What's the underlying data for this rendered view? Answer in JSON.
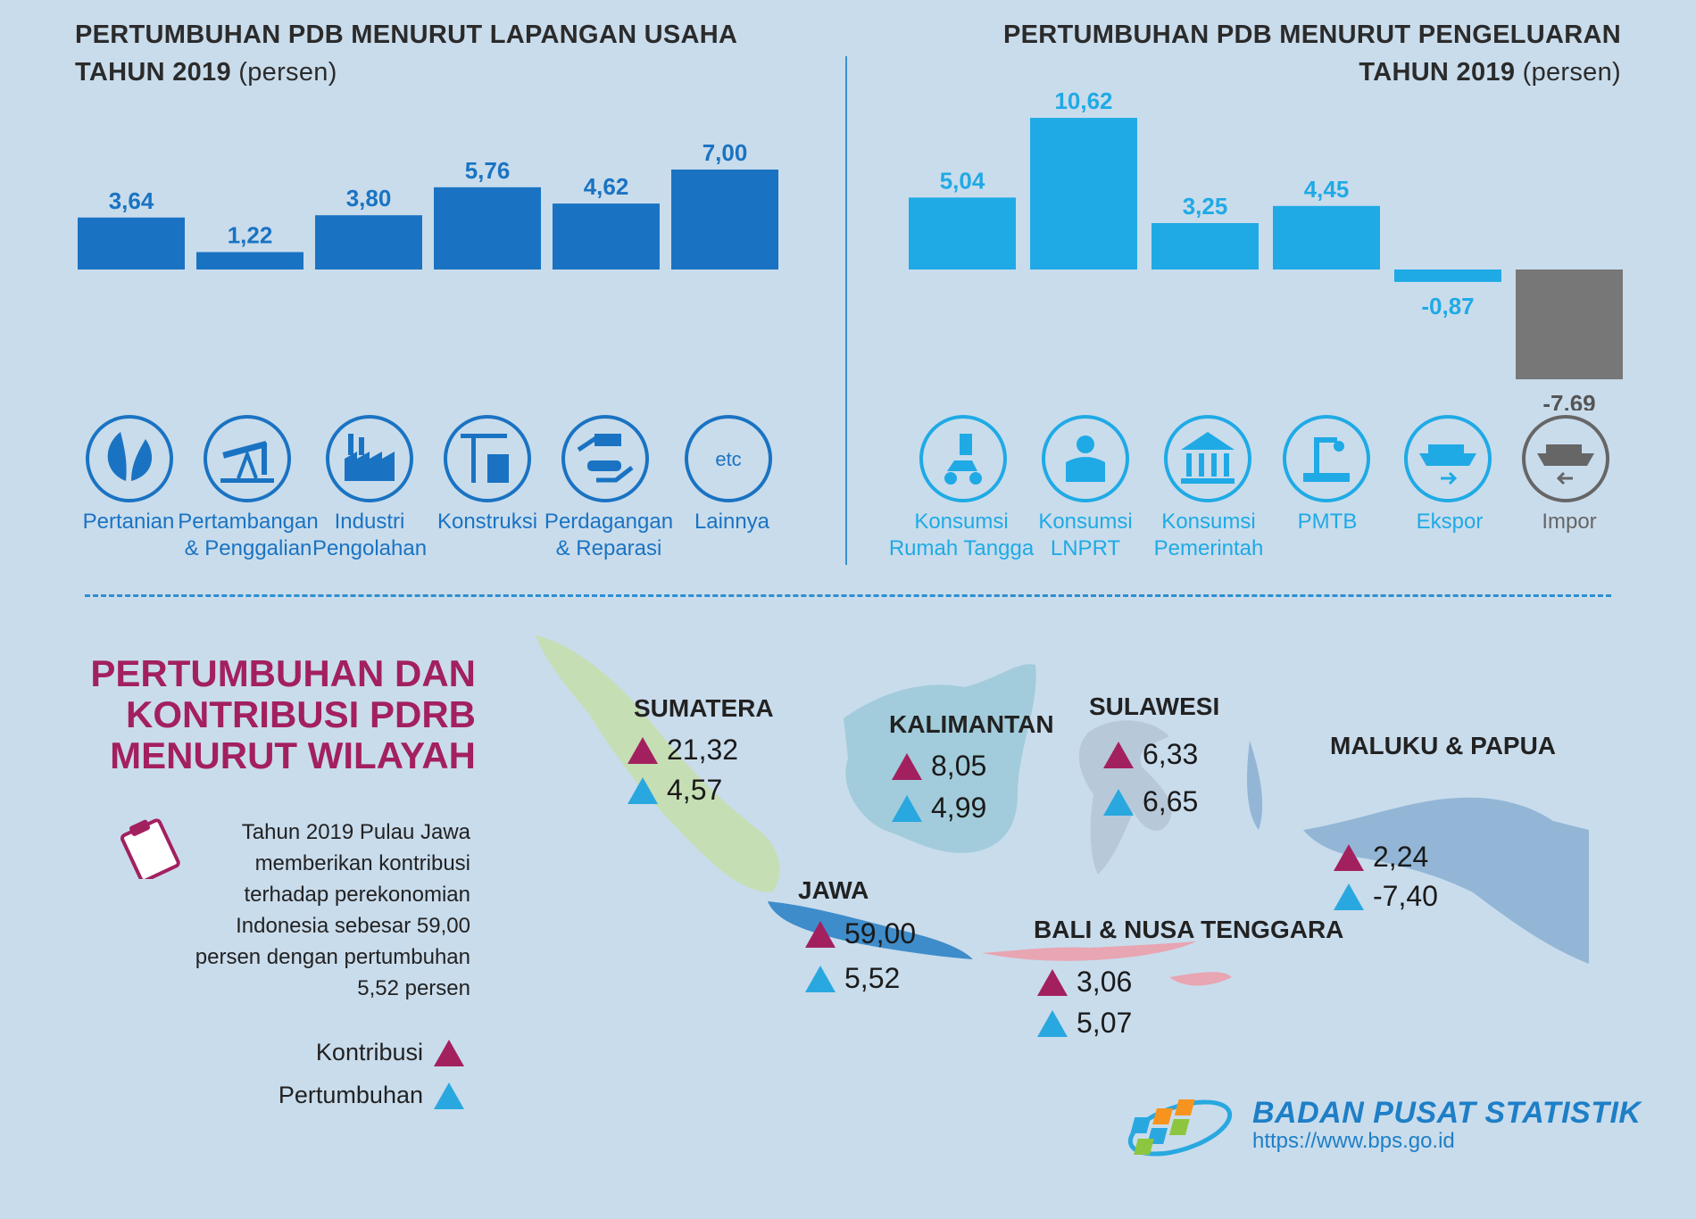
{
  "left_title": {
    "line1": "PERTUMBUHAN PDB MENURUT LAPANGAN USAHA",
    "line2_bold": "TAHUN 2019",
    "line2_unit": " (persen)"
  },
  "right_title": {
    "line1": "PERTUMBUHAN PDB MENURUT PENGELUARAN",
    "line2_bold": "TAHUN 2019",
    "line2_unit": " (persen)"
  },
  "colors": {
    "left_bar": "#1a73c2",
    "right_bar": "#1faae5",
    "impor_bar": "#777777",
    "contribution": "#a3205f",
    "growth": "#29a8e0",
    "title_accent": "#a3205f"
  },
  "chart_data": [
    {
      "type": "bar",
      "title": "PERTUMBUHAN PDB MENURUT LAPANGAN USAHA TAHUN 2019 (persen)",
      "categories": [
        "Pertanian",
        "Pertambangan & Penggalian",
        "Industri Pengolahan",
        "Konstruksi",
        "Perdagangan & Reparasi",
        "Lainnya"
      ],
      "values": [
        3.64,
        1.22,
        3.8,
        5.76,
        4.62,
        7.0
      ],
      "value_labels": [
        "3,64",
        "1,22",
        "3,80",
        "5,76",
        "4,62",
        "7,00"
      ],
      "icons": [
        "leaf-icon",
        "oil-pump-icon",
        "factory-icon",
        "crane-icon",
        "trade-hands-icon",
        "etc-icon"
      ],
      "icon_text_etc": "etc",
      "grid": false
    },
    {
      "type": "bar",
      "title": "PERTUMBUHAN PDB MENURUT PENGELUARAN TAHUN 2019 (persen)",
      "categories": [
        "Konsumsi Rumah Tangga",
        "Konsumsi LNPRT",
        "Konsumsi Pemerintah",
        "PMTB",
        "Ekspor",
        "Impor"
      ],
      "values": [
        5.04,
        10.62,
        3.25,
        4.45,
        -0.87,
        -7.69
      ],
      "value_labels": [
        "5,04",
        "10,62",
        "3,25",
        "4,45",
        "-0,87",
        "-7,69"
      ],
      "icons": [
        "household-icon",
        "person-icon",
        "government-building-icon",
        "machine-icon",
        "export-ship-icon",
        "import-ship-icon"
      ],
      "grid": false
    }
  ],
  "left_labels": [
    "Pertanian",
    "Pertambangan\n& Penggalian",
    "Industri\nPengolahan",
    "Konstruksi",
    "Perdagangan\n& Reparasi",
    "Lainnya"
  ],
  "right_labels": [
    "Konsumsi\nRumah Tangga",
    "Konsumsi\nLNPRT",
    "Konsumsi\nPemerintah",
    "PMTB",
    "Ekspor",
    "Impor"
  ],
  "pdrb": {
    "title": "PERTUMBUHAN DAN\nKONTRIBUSI PDRB\nMENURUT WILAYAH",
    "description": "Tahun 2019 Pulau Jawa memberikan kontribusi terhadap perekonomian Indonesia sebesar 59,00 persen dengan pertumbuhan 5,52 persen",
    "legend_contribution": "Kontribusi",
    "legend_growth": "Pertumbuhan"
  },
  "regions": [
    {
      "name": "SUMATERA",
      "kontribusi": "21,32",
      "pertumbuhan": "4,57"
    },
    {
      "name": "KALIMANTAN",
      "kontribusi": "8,05",
      "pertumbuhan": "4,99"
    },
    {
      "name": "SULAWESI",
      "kontribusi": "6,33",
      "pertumbuhan": "6,65"
    },
    {
      "name": "MALUKU & PAPUA",
      "kontribusi": "2,24",
      "pertumbuhan": "-7,40"
    },
    {
      "name": "JAWA",
      "kontribusi": "59,00",
      "pertumbuhan": "5,52"
    },
    {
      "name": "BALI & NUSA TENGGARA",
      "kontribusi": "3,06",
      "pertumbuhan": "5,07"
    }
  ],
  "footer": {
    "org": "BADAN PUSAT STATISTIK",
    "url": "https://www.bps.go.id"
  }
}
